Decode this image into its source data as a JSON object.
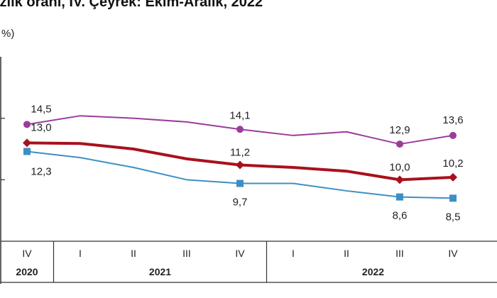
{
  "title": "ızlık oranı, IV. Çeyrek: Ekim-Aralık, 2022",
  "chart_data": {
    "type": "line",
    "title": "ızlık oranı, IV. Çeyrek: Ekim-Aralık, 2022",
    "ylabel": "%)",
    "xlabel": "",
    "ylim": [
      5,
      20
    ],
    "grid": false,
    "categories": [
      "IV",
      "I",
      "II",
      "III",
      "IV",
      "I",
      "II",
      "III",
      "IV"
    ],
    "year_groups": [
      {
        "label": "2020",
        "start": 0,
        "end": 0
      },
      {
        "label": "2021",
        "start": 1,
        "end": 4
      },
      {
        "label": "2022",
        "start": 5,
        "end": 8
      }
    ],
    "series": [
      {
        "color": "#9b3c9b",
        "marker": "circle",
        "values": [
          14.5,
          15.2,
          15.0,
          14.7,
          14.1,
          13.6,
          13.9,
          12.9,
          13.6
        ],
        "labels": [
          "14,5",
          "",
          "",
          "",
          "14,1",
          "",
          "",
          "12,9",
          "13,6"
        ]
      },
      {
        "color": "#a8111c",
        "marker": "diamond",
        "values": [
          13.0,
          12.95,
          12.5,
          11.7,
          11.2,
          11.0,
          10.7,
          10.0,
          10.2
        ],
        "labels": [
          "13,0",
          "",
          "",
          "",
          "11,2",
          "",
          "",
          "10,0",
          "10,2"
        ]
      },
      {
        "color": "#3d8fc3",
        "marker": "square",
        "values": [
          12.3,
          11.8,
          11.0,
          10.0,
          9.7,
          9.7,
          9.1,
          8.6,
          8.5
        ],
        "labels": [
          "12,3",
          "",
          "",
          "",
          "9,7",
          "",
          "",
          "8,6",
          "8,5"
        ]
      }
    ]
  }
}
